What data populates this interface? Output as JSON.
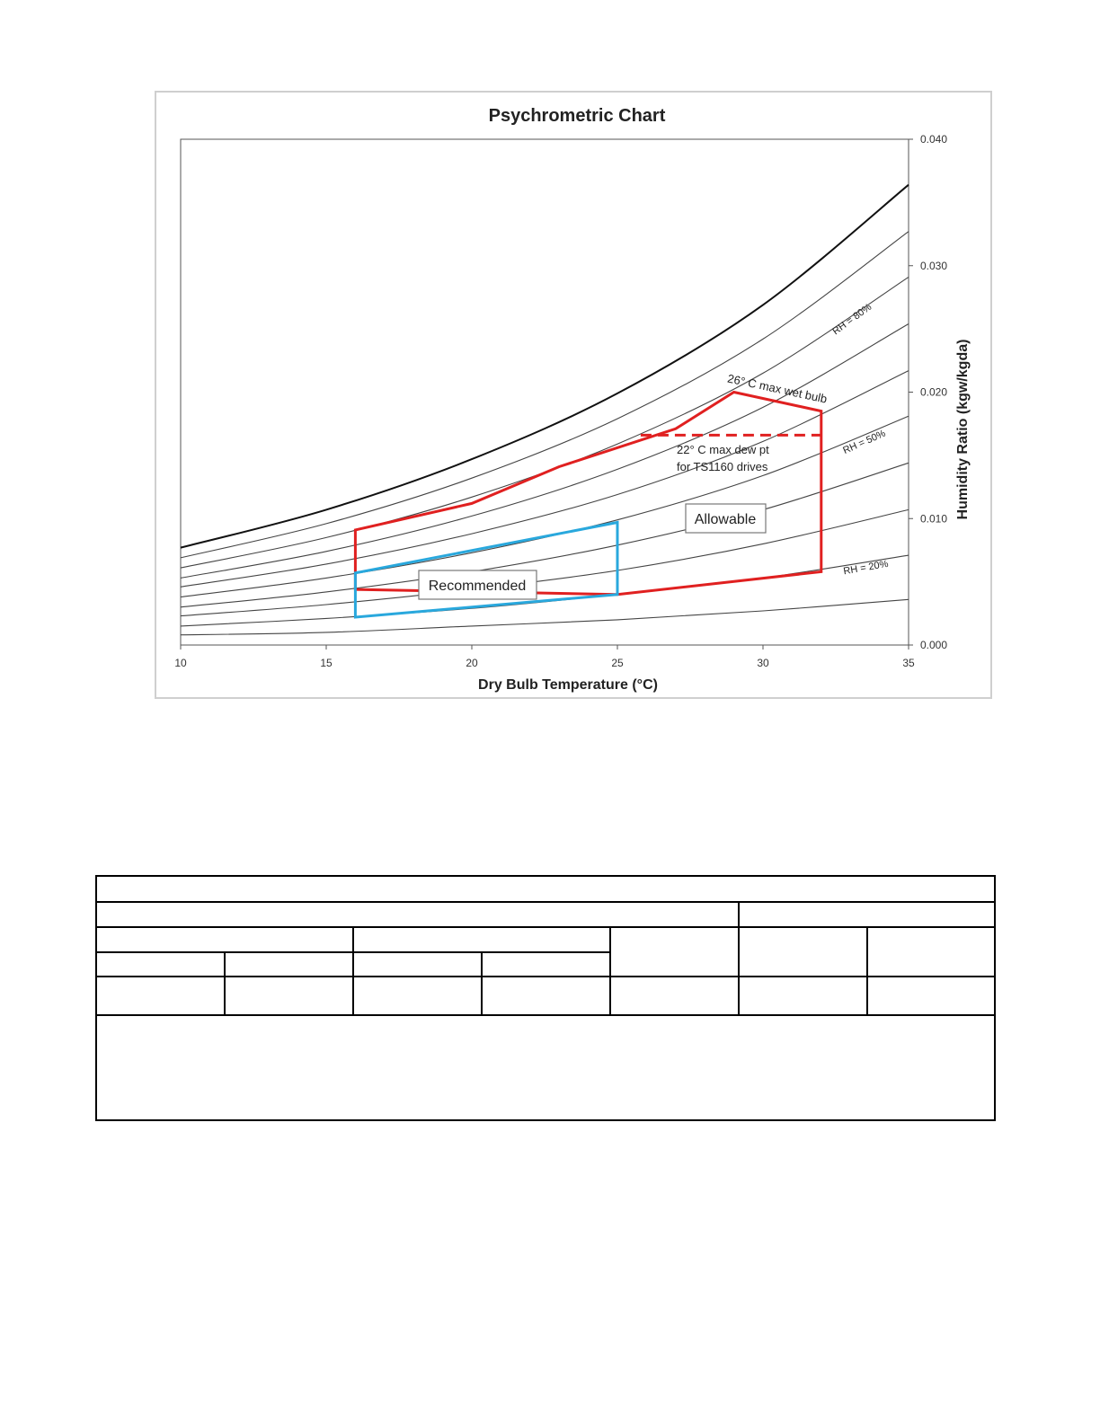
{
  "chart_data": {
    "type": "line",
    "title": "Psychrometric Chart",
    "xlabel": "Dry Bulb Temperature (°C)",
    "ylabel": "Humidity Ratio (kgw/kgda)",
    "xlim": [
      10,
      35
    ],
    "ylim": [
      0.0,
      0.04
    ],
    "x_ticks": [
      "10",
      "15",
      "20",
      "25",
      "30",
      "35"
    ],
    "y_ticks": [
      "0.000",
      "0.010",
      "0.020",
      "0.030",
      "0.040"
    ],
    "grid": false,
    "rh_curves": [
      {
        "rh": 10,
        "x": [
          10,
          15,
          20,
          25,
          30,
          35
        ],
        "y": [
          0.0008,
          0.001,
          0.0015,
          0.002,
          0.0027,
          0.0036
        ]
      },
      {
        "rh": 20,
        "x": [
          10,
          15,
          20,
          25,
          30,
          35
        ],
        "y": [
          0.0015,
          0.0021,
          0.0029,
          0.004,
          0.0053,
          0.0071
        ]
      },
      {
        "rh": 30,
        "x": [
          10,
          15,
          20,
          25,
          30,
          35
        ],
        "y": [
          0.0023,
          0.0032,
          0.0044,
          0.0059,
          0.008,
          0.0107
        ]
      },
      {
        "rh": 40,
        "x": [
          10,
          15,
          20,
          25,
          30,
          35
        ],
        "y": [
          0.003,
          0.0042,
          0.0058,
          0.0079,
          0.0107,
          0.0144
        ]
      },
      {
        "rh": 50,
        "x": [
          10,
          15,
          20,
          25,
          30,
          35
        ],
        "y": [
          0.0038,
          0.0053,
          0.0073,
          0.0099,
          0.0134,
          0.0181
        ]
      },
      {
        "rh": 60,
        "x": [
          10,
          15,
          20,
          25,
          30,
          35
        ],
        "y": [
          0.0046,
          0.0064,
          0.0088,
          0.0119,
          0.0161,
          0.0217
        ]
      },
      {
        "rh": 70,
        "x": [
          10,
          15,
          20,
          25,
          30,
          35
        ],
        "y": [
          0.0053,
          0.0074,
          0.0102,
          0.0139,
          0.0188,
          0.0254
        ]
      },
      {
        "rh": 80,
        "x": [
          10,
          15,
          20,
          25,
          30,
          35
        ],
        "y": [
          0.0061,
          0.0085,
          0.0117,
          0.0159,
          0.0215,
          0.0291
        ]
      },
      {
        "rh": 90,
        "x": [
          10,
          15,
          20,
          25,
          30,
          35
        ],
        "y": [
          0.0069,
          0.0096,
          0.0132,
          0.0179,
          0.0242,
          0.0327
        ]
      },
      {
        "rh": 100,
        "x": [
          10,
          15,
          20,
          25,
          30,
          35
        ],
        "y": [
          0.0077,
          0.0107,
          0.0147,
          0.0199,
          0.0269,
          0.0364
        ]
      }
    ],
    "allowable_region": {
      "name": "Allowable",
      "color": "#e02020",
      "x": [
        16,
        16,
        20,
        23,
        27,
        29,
        32,
        32,
        25
      ],
      "y": [
        0.0044,
        0.0091,
        0.0112,
        0.0141,
        0.0171,
        0.02,
        0.0185,
        0.0058,
        0.004
      ]
    },
    "recommended_region": {
      "name": "Recommended",
      "color": "#29a8dd",
      "x": [
        16,
        16,
        25,
        25
      ],
      "y": [
        0.0022,
        0.0057,
        0.0097,
        0.004
      ]
    },
    "dew_point_limit": {
      "x": [
        25.8,
        32
      ],
      "y": [
        0.0166,
        0.0166
      ],
      "color": "#e02020",
      "style": "dashed"
    },
    "annotations": {
      "rh80": "RH = 80%",
      "rh50": "RH = 50%",
      "rh20": "RH = 20%",
      "wet_bulb": "26° C max wet bulb",
      "dew_line1": "22° C max dew pt",
      "dew_line2": "for TS1160 drives",
      "allowable": "Allowable",
      "recommended": "Recommended"
    }
  }
}
